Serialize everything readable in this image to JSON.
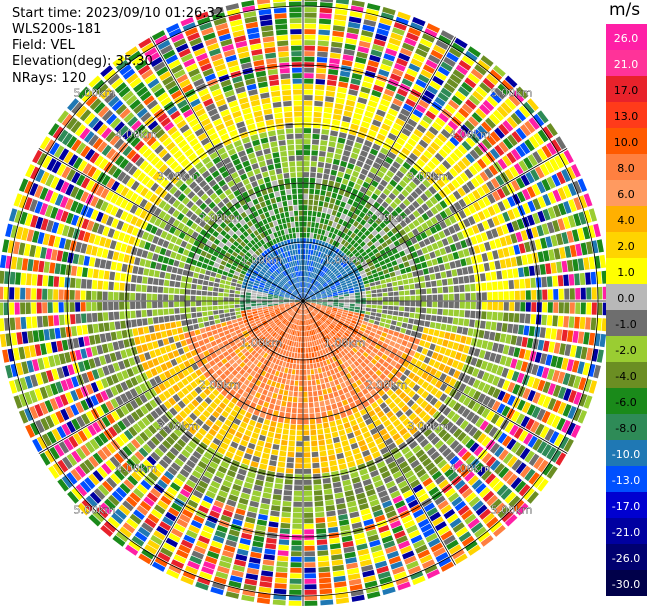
{
  "info": {
    "start_time": "Start time: 2023/09/10 01:26:32",
    "instrument": "WLS200s-181",
    "field": "Field: VEL",
    "elevation": "Elevation(deg): 35.30",
    "nrays": "NRays: 120"
  },
  "colorbar": {
    "title": "m/s",
    "labels": [
      "26.0",
      "21.0",
      "17.0",
      "13.0",
      "10.0",
      "8.0",
      "6.0",
      "4.0",
      "2.0",
      "1.0",
      "0.0",
      "-1.0",
      "-2.0",
      "-4.0",
      "-6.0",
      "-8.0",
      "-10.0",
      "-13.0",
      "-17.0",
      "-21.0",
      "-26.0",
      "-30.0"
    ],
    "colors": [
      "#ff1fa6",
      "#ff3399",
      "#e8222b",
      "#ff3b1a",
      "#ff5a00",
      "#ff8040",
      "#ff9a60",
      "#ffb000",
      "#ffd400",
      "#ffff00",
      "#b8b8b8",
      "#6e6e6e",
      "#9acd32",
      "#6b8e23",
      "#1a8a1a",
      "#2e8b57",
      "#1f78b4",
      "#0050ff",
      "#0000d0",
      "#0000a0",
      "#000070",
      "#00004a"
    ]
  },
  "chart_data": {
    "type": "heatmap",
    "projection": "polar PPI",
    "field": "VEL",
    "units": "m/s",
    "nrays": 120,
    "elevation_deg": 35.3,
    "range_rings_km": [
      1.0,
      2.0,
      3.0,
      4.0,
      5.0
    ],
    "ring_labels": [
      "1.00km",
      "2.00km",
      "3.00km",
      "4.00km",
      "5.00km"
    ],
    "spokes_deg": [
      0,
      30,
      60,
      90,
      120,
      150,
      180,
      210,
      240,
      270,
      300,
      330
    ],
    "pattern": "toward (negative, blue/green) in the north, away (positive, red/orange) in the south near center; noisy mixed values beyond ~3 km"
  }
}
